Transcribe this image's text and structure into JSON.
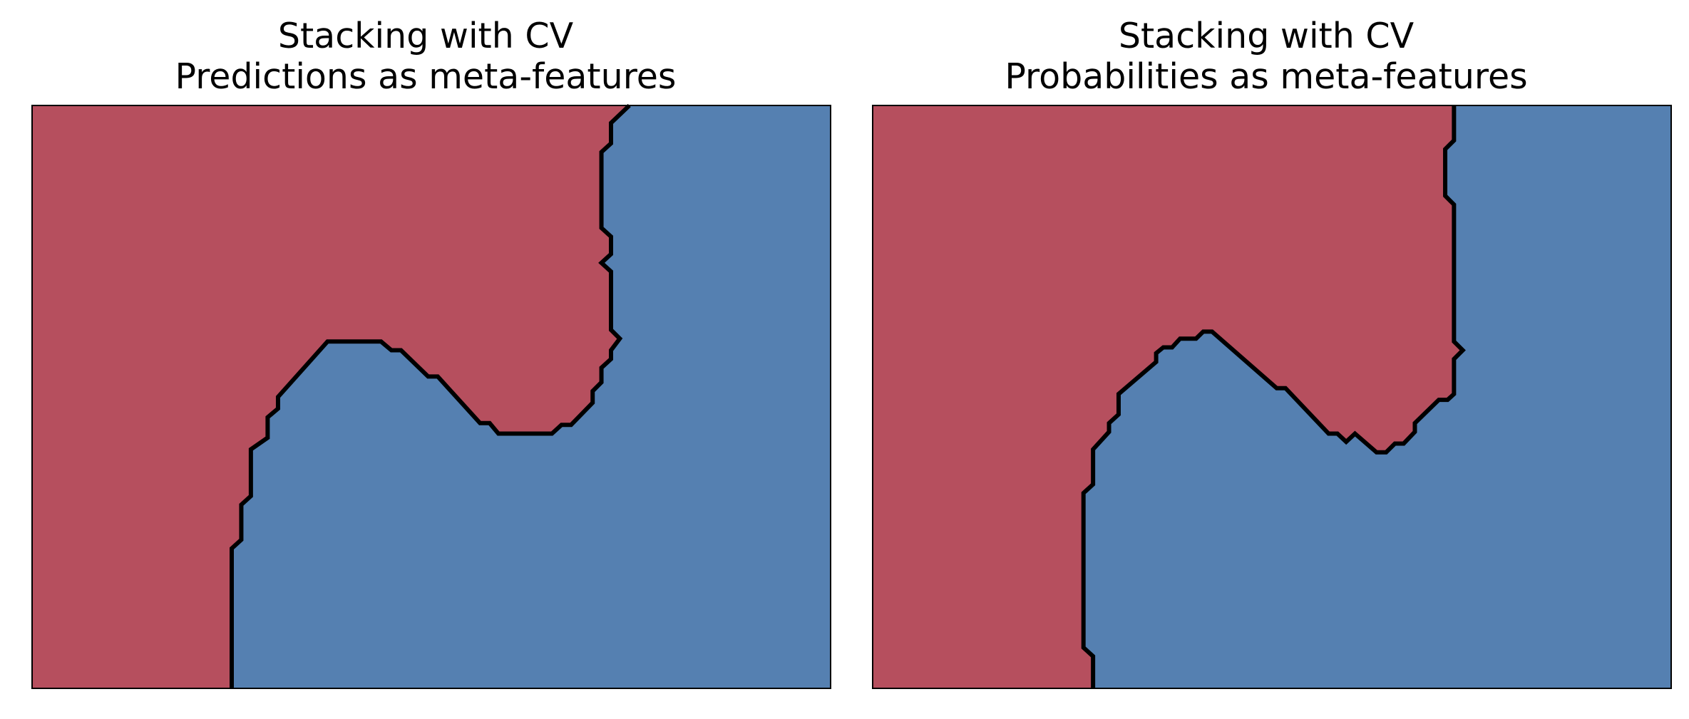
{
  "chart_data": [
    {
      "type": "decision-boundary",
      "title_line1": "Stacking with CV",
      "title_line2": "Predictions as meta-features",
      "xlabel": "",
      "ylabel": "",
      "xlim": [
        0,
        1
      ],
      "ylim": [
        0,
        1
      ],
      "ticks": false,
      "grid": false,
      "colors": {
        "class_0": "#b64f5e",
        "class_1": "#5580b1",
        "boundary": "#000000",
        "frame": "#000000"
      },
      "boundary": [
        [
          0.25,
          0
        ],
        [
          0.25,
          0.24
        ],
        [
          0.262,
          0.255
        ],
        [
          0.262,
          0.315
        ],
        [
          0.274,
          0.33
        ],
        [
          0.274,
          0.41
        ],
        [
          0.295,
          0.43
        ],
        [
          0.295,
          0.465
        ],
        [
          0.308,
          0.48
        ],
        [
          0.308,
          0.5
        ],
        [
          0.37,
          0.595
        ],
        [
          0.437,
          0.595
        ],
        [
          0.45,
          0.58
        ],
        [
          0.462,
          0.58
        ],
        [
          0.496,
          0.535
        ],
        [
          0.508,
          0.535
        ],
        [
          0.561,
          0.455
        ],
        [
          0.573,
          0.455
        ],
        [
          0.584,
          0.437
        ],
        [
          0.651,
          0.437
        ],
        [
          0.663,
          0.452
        ],
        [
          0.675,
          0.452
        ],
        [
          0.702,
          0.49
        ],
        [
          0.702,
          0.51
        ],
        [
          0.713,
          0.525
        ],
        [
          0.713,
          0.55
        ],
        [
          0.725,
          0.565
        ],
        [
          0.725,
          0.58
        ],
        [
          0.736,
          0.6
        ],
        [
          0.725,
          0.615
        ],
        [
          0.725,
          0.715
        ],
        [
          0.713,
          0.73
        ],
        [
          0.725,
          0.745
        ],
        [
          0.725,
          0.775
        ],
        [
          0.713,
          0.79
        ],
        [
          0.713,
          0.92
        ],
        [
          0.725,
          0.935
        ],
        [
          0.725,
          0.97
        ],
        [
          0.748,
          1
        ]
      ]
    },
    {
      "type": "decision-boundary",
      "title_line1": "Stacking with CV",
      "title_line2": "Probabilities as meta-features",
      "xlabel": "",
      "ylabel": "",
      "xlim": [
        0,
        1
      ],
      "ylim": [
        0,
        1
      ],
      "ticks": false,
      "grid": false,
      "colors": {
        "class_0": "#b64f5e",
        "class_1": "#5580b1",
        "boundary": "#000000",
        "frame": "#000000"
      },
      "boundary": [
        [
          0.276,
          0
        ],
        [
          0.276,
          0.055
        ],
        [
          0.264,
          0.07
        ],
        [
          0.264,
          0.335
        ],
        [
          0.276,
          0.35
        ],
        [
          0.276,
          0.41
        ],
        [
          0.296,
          0.44
        ],
        [
          0.296,
          0.455
        ],
        [
          0.308,
          0.47
        ],
        [
          0.308,
          0.505
        ],
        [
          0.355,
          0.56
        ],
        [
          0.355,
          0.575
        ],
        [
          0.364,
          0.585
        ],
        [
          0.375,
          0.585
        ],
        [
          0.385,
          0.6
        ],
        [
          0.405,
          0.6
        ],
        [
          0.414,
          0.612
        ],
        [
          0.425,
          0.612
        ],
        [
          0.506,
          0.515
        ],
        [
          0.517,
          0.515
        ],
        [
          0.571,
          0.437
        ],
        [
          0.582,
          0.437
        ],
        [
          0.593,
          0.423
        ],
        [
          0.604,
          0.437
        ],
        [
          0.631,
          0.405
        ],
        [
          0.643,
          0.405
        ],
        [
          0.654,
          0.42
        ],
        [
          0.665,
          0.42
        ],
        [
          0.679,
          0.44
        ],
        [
          0.679,
          0.455
        ],
        [
          0.709,
          0.495
        ],
        [
          0.72,
          0.495
        ],
        [
          0.728,
          0.505
        ],
        [
          0.728,
          0.565
        ],
        [
          0.739,
          0.58
        ],
        [
          0.728,
          0.595
        ],
        [
          0.728,
          0.83
        ],
        [
          0.717,
          0.845
        ],
        [
          0.717,
          0.925
        ],
        [
          0.728,
          0.94
        ],
        [
          0.728,
          1
        ]
      ]
    }
  ]
}
